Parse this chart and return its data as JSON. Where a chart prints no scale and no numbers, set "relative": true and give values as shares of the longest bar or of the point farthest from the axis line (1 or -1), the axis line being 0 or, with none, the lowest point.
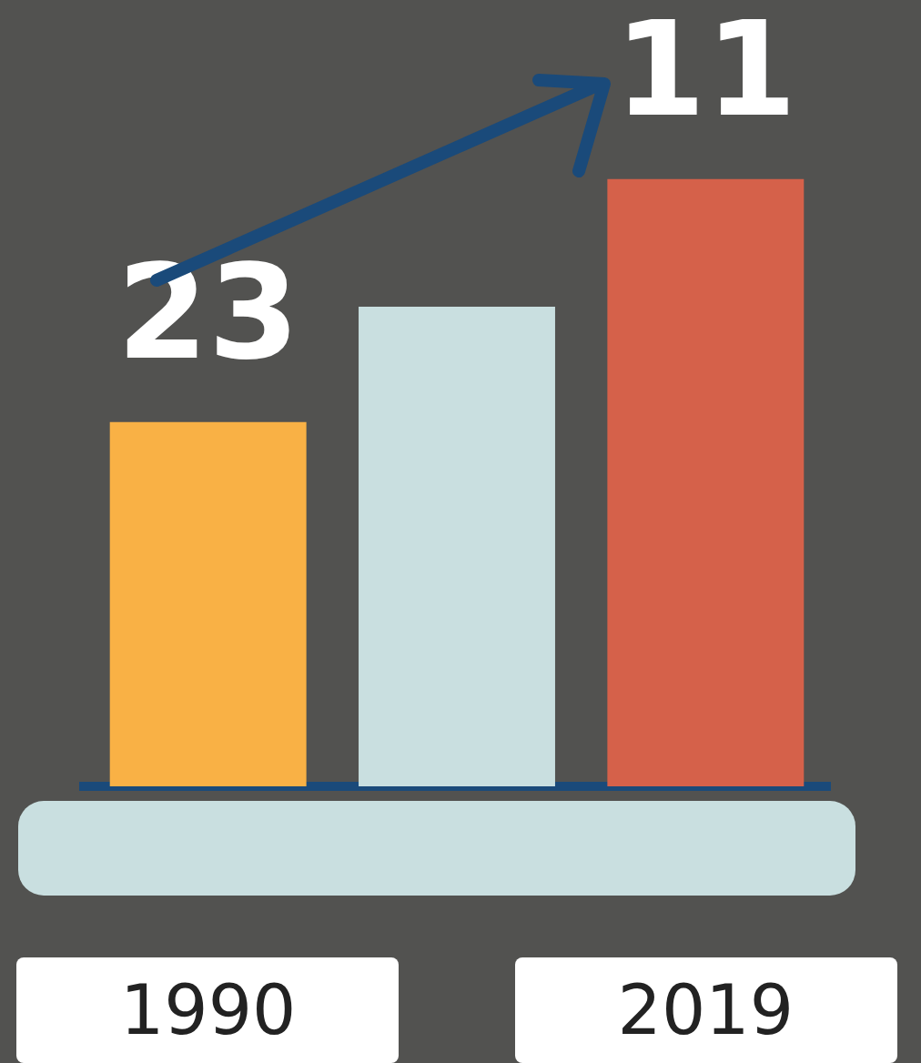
{
  "chart_data": {
    "type": "bar",
    "relative": true,
    "categories": [
      "1990",
      null,
      "2019"
    ],
    "values": [
      0.6,
      0.79,
      1
    ],
    "colors": [
      "#f9b145",
      "#c9dfe0",
      "#d5614a"
    ],
    "annotations": [
      "23",
      "11"
    ],
    "legend": false
  }
}
